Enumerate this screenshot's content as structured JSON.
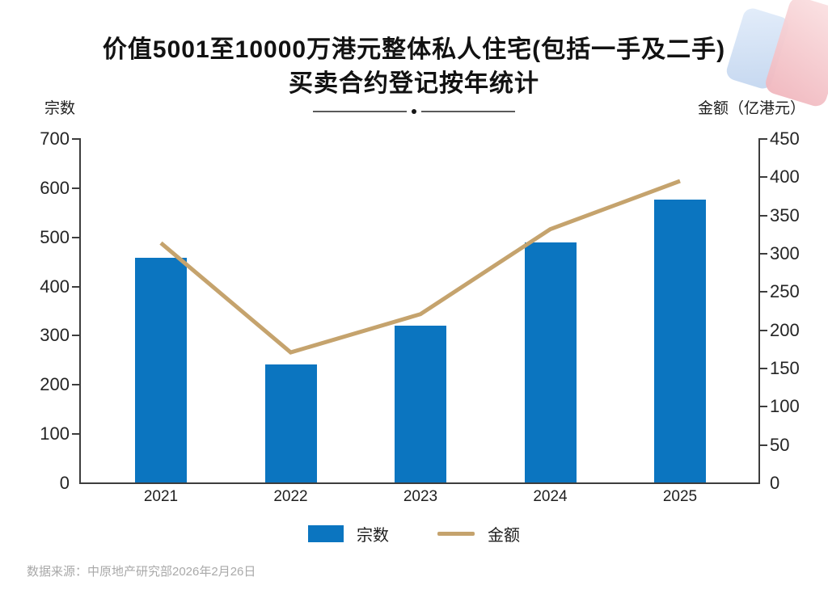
{
  "title": {
    "line1": "价值5001至10000万港元整体私人住宅(包括一手及二手)",
    "line2": "买卖合约登记按年统计"
  },
  "axes": {
    "left_label": "宗数",
    "right_label": "金额（亿港元）"
  },
  "legend": {
    "bar_label": "宗数",
    "line_label": "金额"
  },
  "source": "数据来源：中原地产研究部2026年2月26日",
  "colors": {
    "bar": "#0b75c0",
    "line": "#c5a36d",
    "axis": "#3d3d3d",
    "deco_pink": "#f0b6bd",
    "deco_blue": "#c6d8f0"
  },
  "chart_data": {
    "type": "bar+line combo",
    "categories": [
      "2021",
      "2022",
      "2023",
      "2024",
      "2025"
    ],
    "series": [
      {
        "name": "宗数",
        "type": "bar",
        "axis": "left",
        "values": [
          457,
          240,
          318,
          488,
          575
        ]
      },
      {
        "name": "金额",
        "type": "line",
        "axis": "right",
        "values": [
          313,
          170,
          220,
          331,
          394
        ]
      }
    ],
    "left_axis": {
      "label": "宗数",
      "min": 0,
      "max": 700,
      "ticks": [
        0,
        100,
        200,
        300,
        400,
        500,
        600,
        700
      ]
    },
    "right_axis": {
      "label": "金额（亿港元）",
      "min": 0,
      "max": 450,
      "ticks": [
        0,
        50,
        100,
        150,
        200,
        250,
        300,
        350,
        400,
        450
      ]
    },
    "grid": false,
    "legend_position": "bottom"
  }
}
